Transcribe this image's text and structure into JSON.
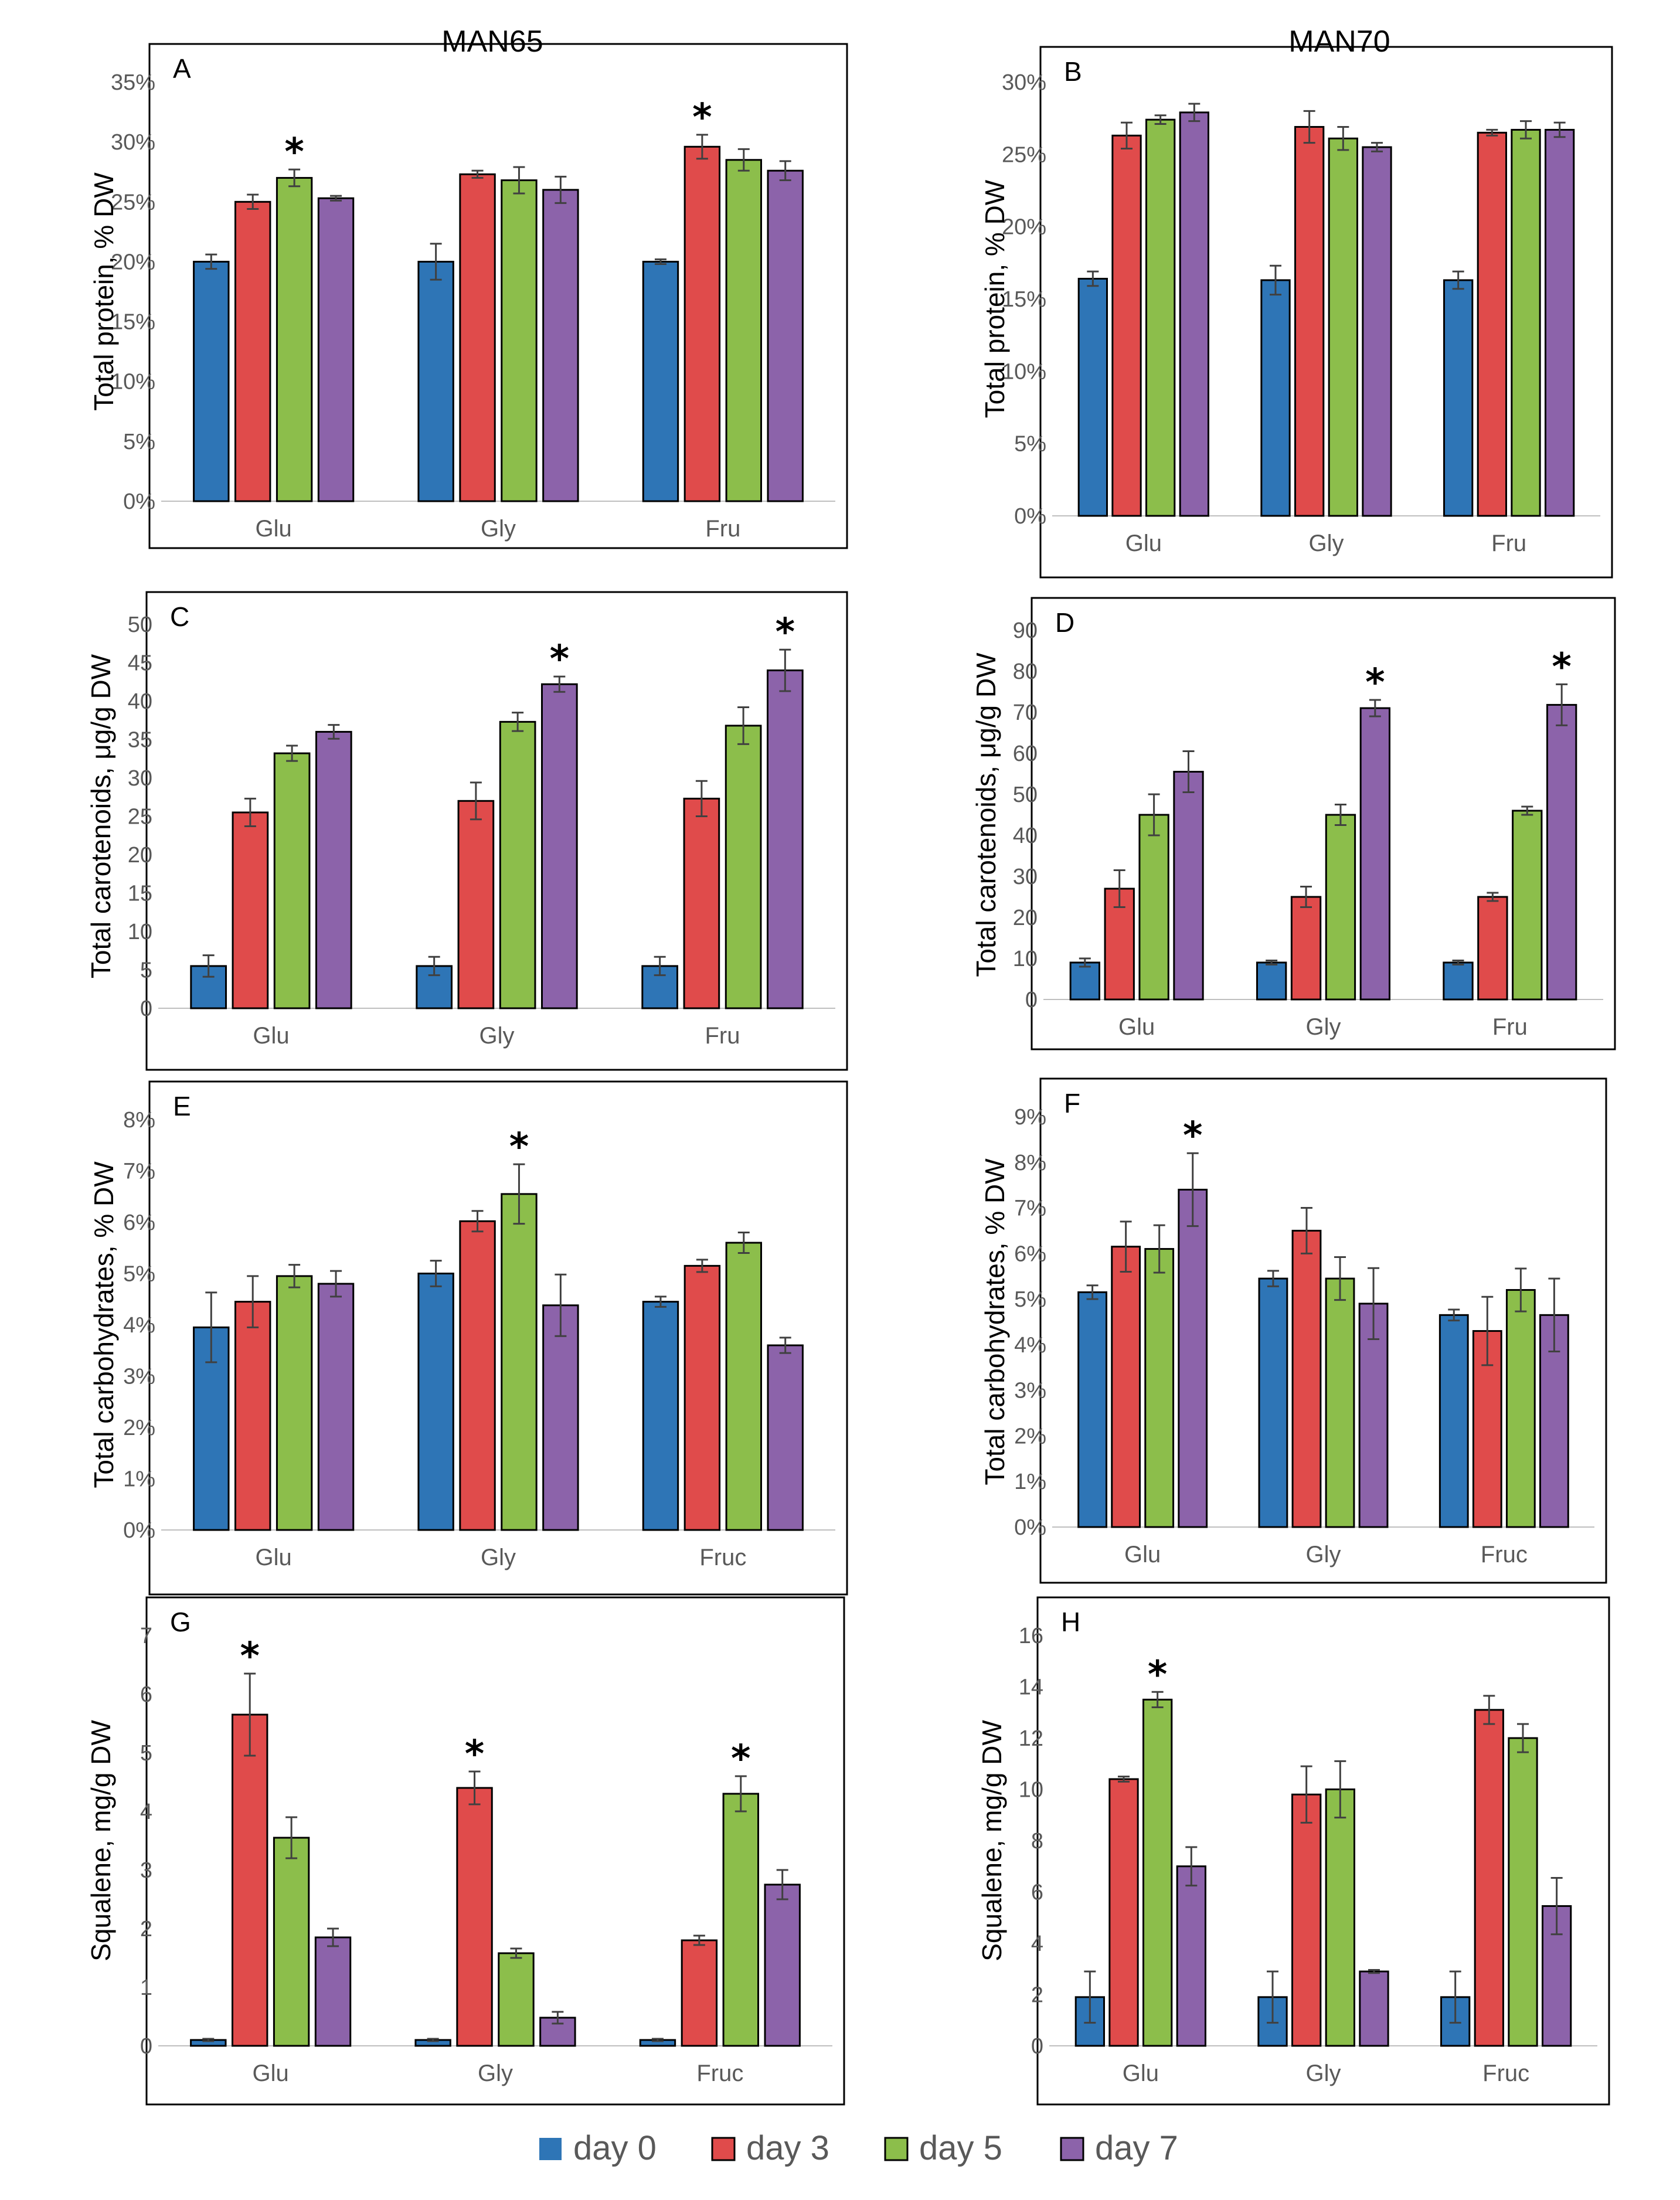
{
  "figure": {
    "column_titles": [
      "MAN65",
      "MAN70"
    ]
  },
  "legend": [
    {
      "name": "day 0",
      "color": "#2E75B6"
    },
    {
      "name": "day 3",
      "color": "#E04B4B"
    },
    {
      "name": "day 5",
      "color": "#8CBE4B"
    },
    {
      "name": "day 7",
      "color": "#8C63AA"
    }
  ],
  "chart_data": [
    {
      "type": "bar",
      "panel": "A",
      "title": "MAN65",
      "ylabel": "Total protein, % DW",
      "categories": [
        "Glu",
        "Gly",
        "Fru"
      ],
      "ylim": [
        0,
        35
      ],
      "ytick_step": 5,
      "ytick_format": "percent",
      "series": [
        {
          "name": "day 0",
          "values": [
            20.0,
            20.0,
            20.0
          ],
          "errors": [
            0.6,
            1.5,
            0.2
          ]
        },
        {
          "name": "day 3",
          "values": [
            25.0,
            27.3,
            29.6
          ],
          "errors": [
            0.6,
            0.3,
            1.0
          ]
        },
        {
          "name": "day 5",
          "values": [
            27.0,
            26.8,
            28.5
          ],
          "errors": [
            0.7,
            1.1,
            0.9
          ]
        },
        {
          "name": "day 7",
          "values": [
            25.3,
            26.0,
            27.6
          ],
          "errors": [
            0.2,
            1.1,
            0.8
          ]
        }
      ],
      "significance": [
        {
          "category": "Glu",
          "series": "day 5",
          "label": "*"
        },
        {
          "category": "Fru",
          "series": "day 3",
          "label": "*"
        }
      ]
    },
    {
      "type": "bar",
      "panel": "B",
      "title": "MAN70",
      "ylabel": "Total protein, % DW",
      "categories": [
        "Glu",
        "Gly",
        "Fru"
      ],
      "ylim": [
        0,
        30
      ],
      "ytick_step": 5,
      "ytick_format": "percent",
      "series": [
        {
          "name": "day 0",
          "values": [
            16.4,
            16.3,
            16.3
          ],
          "errors": [
            0.5,
            1.0,
            0.6
          ]
        },
        {
          "name": "day 3",
          "values": [
            26.3,
            26.9,
            26.5
          ],
          "errors": [
            0.9,
            1.1,
            0.2
          ]
        },
        {
          "name": "day 5",
          "values": [
            27.4,
            26.1,
            26.7
          ],
          "errors": [
            0.3,
            0.8,
            0.6
          ]
        },
        {
          "name": "day 7",
          "values": [
            27.9,
            25.5,
            26.7
          ],
          "errors": [
            0.6,
            0.3,
            0.5
          ]
        }
      ],
      "significance": []
    },
    {
      "type": "bar",
      "panel": "C",
      "title": "",
      "ylabel": "Total carotenoids, μg/g DW",
      "categories": [
        "Glu",
        "Gly",
        "Fru"
      ],
      "ylim": [
        0,
        50
      ],
      "ytick_step": 5,
      "ytick_format": "number",
      "series": [
        {
          "name": "day 0",
          "values": [
            5.5,
            5.5,
            5.5
          ],
          "errors": [
            1.4,
            1.2,
            1.2
          ]
        },
        {
          "name": "day 3",
          "values": [
            25.5,
            27.0,
            27.3
          ],
          "errors": [
            1.8,
            2.4,
            2.3
          ]
        },
        {
          "name": "day 5",
          "values": [
            33.2,
            37.3,
            36.8
          ],
          "errors": [
            1.0,
            1.2,
            2.4
          ]
        },
        {
          "name": "day 7",
          "values": [
            36.0,
            42.2,
            44.0
          ],
          "errors": [
            0.9,
            1.0,
            2.7
          ]
        }
      ],
      "significance": [
        {
          "category": "Gly",
          "series": "day 7",
          "label": "*"
        },
        {
          "category": "Fru",
          "series": "day 7",
          "label": "*"
        }
      ]
    },
    {
      "type": "bar",
      "panel": "D",
      "title": "",
      "ylabel": "Total carotenoids, μg/g DW",
      "categories": [
        "Glu",
        "Gly",
        "Fru"
      ],
      "ylim": [
        0,
        90
      ],
      "ytick_step": 10,
      "ytick_format": "number",
      "series": [
        {
          "name": "day 0",
          "values": [
            9.0,
            9.0,
            9.0
          ],
          "errors": [
            1.0,
            0.5,
            0.5
          ]
        },
        {
          "name": "day 3",
          "values": [
            27.0,
            25.0,
            25.0
          ],
          "errors": [
            4.5,
            2.5,
            1.0
          ]
        },
        {
          "name": "day 5",
          "values": [
            45.0,
            45.0,
            46.0
          ],
          "errors": [
            5.0,
            2.5,
            1.0
          ]
        },
        {
          "name": "day 7",
          "values": [
            55.5,
            71.0,
            71.8
          ],
          "errors": [
            5.0,
            2.0,
            5.0
          ]
        }
      ],
      "significance": [
        {
          "category": "Gly",
          "series": "day 7",
          "label": "*"
        },
        {
          "category": "Fru",
          "series": "day 7",
          "label": "*"
        }
      ]
    },
    {
      "type": "bar",
      "panel": "E",
      "title": "",
      "ylabel": "Total carbohydrates, % DW",
      "categories": [
        "Glu",
        "Gly",
        "Fruc"
      ],
      "ylim": [
        0,
        8
      ],
      "ytick_step": 1,
      "ytick_format": "percent",
      "series": [
        {
          "name": "day 0",
          "values": [
            3.95,
            5.0,
            4.45
          ],
          "errors": [
            0.68,
            0.25,
            0.1
          ]
        },
        {
          "name": "day 3",
          "values": [
            4.45,
            6.02,
            5.15
          ],
          "errors": [
            0.5,
            0.2,
            0.12
          ]
        },
        {
          "name": "day 5",
          "values": [
            4.95,
            6.55,
            5.6
          ],
          "errors": [
            0.22,
            0.58,
            0.2
          ]
        },
        {
          "name": "day 7",
          "values": [
            4.8,
            4.38,
            3.6
          ],
          "errors": [
            0.25,
            0.6,
            0.15
          ]
        }
      ],
      "significance": [
        {
          "category": "Gly",
          "series": "day 5",
          "label": "*"
        }
      ]
    },
    {
      "type": "bar",
      "panel": "F",
      "title": "",
      "ylabel": "Total carbohydrates, % DW",
      "categories": [
        "Glu",
        "Gly",
        "Fruc"
      ],
      "ylim": [
        0,
        9
      ],
      "ytick_step": 1,
      "ytick_format": "percent",
      "series": [
        {
          "name": "day 0",
          "values": [
            5.15,
            5.45,
            4.65
          ],
          "errors": [
            0.15,
            0.17,
            0.12
          ]
        },
        {
          "name": "day 3",
          "values": [
            6.15,
            6.5,
            4.3
          ],
          "errors": [
            0.55,
            0.5,
            0.75
          ]
        },
        {
          "name": "day 5",
          "values": [
            6.1,
            5.45,
            5.2
          ],
          "errors": [
            0.52,
            0.47,
            0.47
          ]
        },
        {
          "name": "day 7",
          "values": [
            7.4,
            4.9,
            4.65
          ],
          "errors": [
            0.8,
            0.78,
            0.8
          ]
        }
      ],
      "significance": [
        {
          "category": "Glu",
          "series": "day 7",
          "label": "*"
        }
      ]
    },
    {
      "type": "bar",
      "panel": "G",
      "title": "",
      "ylabel": "Squalene, mg/g DW",
      "categories": [
        "Glu",
        "Gly",
        "Fruc"
      ],
      "ylim": [
        0,
        7
      ],
      "ytick_step": 1,
      "ytick_format": "number",
      "series": [
        {
          "name": "day 0",
          "values": [
            0.1,
            0.1,
            0.1
          ],
          "errors": [
            0.02,
            0.02,
            0.02
          ]
        },
        {
          "name": "day 3",
          "values": [
            5.65,
            4.4,
            1.8
          ],
          "errors": [
            0.7,
            0.28,
            0.08
          ]
        },
        {
          "name": "day 5",
          "values": [
            3.55,
            1.58,
            4.3
          ],
          "errors": [
            0.35,
            0.08,
            0.3
          ]
        },
        {
          "name": "day 7",
          "values": [
            1.85,
            0.48,
            2.75
          ],
          "errors": [
            0.15,
            0.1,
            0.25
          ]
        }
      ],
      "significance": [
        {
          "category": "Glu",
          "series": "day 3",
          "label": "*"
        },
        {
          "category": "Gly",
          "series": "day 3",
          "label": "*"
        },
        {
          "category": "Fruc",
          "series": "day 5",
          "label": "*"
        }
      ]
    },
    {
      "type": "bar",
      "panel": "H",
      "title": "",
      "ylabel": "Squalene, mg/g DW",
      "categories": [
        "Glu",
        "Gly",
        "Fruc"
      ],
      "ylim": [
        0,
        16
      ],
      "ytick_step": 2,
      "ytick_format": "number",
      "series": [
        {
          "name": "day 0",
          "values": [
            1.9,
            1.9,
            1.9
          ],
          "errors": [
            1.0,
            1.0,
            1.0
          ]
        },
        {
          "name": "day 3",
          "values": [
            10.4,
            9.8,
            13.1
          ],
          "errors": [
            0.1,
            1.1,
            0.55
          ]
        },
        {
          "name": "day 5",
          "values": [
            13.5,
            10.0,
            12.0
          ],
          "errors": [
            0.3,
            1.1,
            0.55
          ]
        },
        {
          "name": "day 7",
          "values": [
            7.0,
            2.9,
            5.45
          ],
          "errors": [
            0.75,
            0.06,
            1.1
          ]
        }
      ],
      "significance": [
        {
          "category": "Glu",
          "series": "day 5",
          "label": "*"
        }
      ]
    }
  ]
}
